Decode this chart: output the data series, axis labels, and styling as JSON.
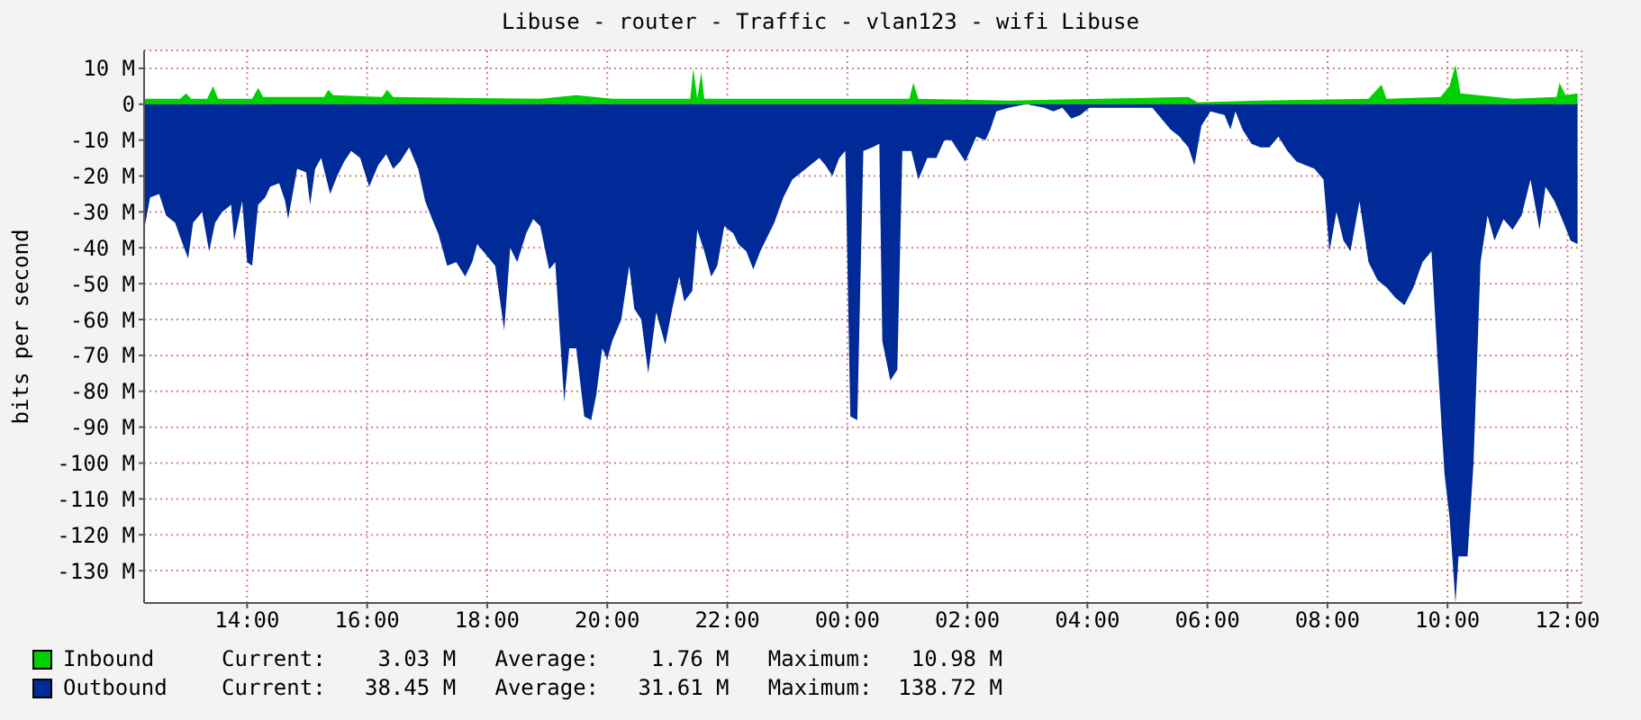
{
  "chart_data": {
    "type": "area",
    "title": "Libuse - router - Traffic - vlan123 - wifi Libuse",
    "ylabel": "bits per second",
    "xlim": [
      "--01-01T12:17",
      "--01-02T12:14"
    ],
    "ylim": [
      -139,
      15
    ],
    "xticks": [
      {
        "value": "--01-01T14:00",
        "label": "14:00"
      },
      {
        "value": "--01-01T16:00",
        "label": "16:00"
      },
      {
        "value": "--01-01T18:00",
        "label": "18:00"
      },
      {
        "value": "--01-01T20:00",
        "label": "20:00"
      },
      {
        "value": "--01-01T22:00",
        "label": "22:00"
      },
      {
        "value": "--01-02T00:00",
        "label": "00:00"
      },
      {
        "value": "--01-02T02:00",
        "label": "02:00"
      },
      {
        "value": "--01-02T04:00",
        "label": "04:00"
      },
      {
        "value": "--01-02T06:00",
        "label": "06:00"
      },
      {
        "value": "--01-02T08:00",
        "label": "08:00"
      },
      {
        "value": "--01-02T10:00",
        "label": "10:00"
      },
      {
        "value": "--01-02T12:00",
        "label": "12:00"
      }
    ],
    "yticks": [
      {
        "value": 10,
        "label": "10 M"
      },
      0,
      {
        "value": -10,
        "label": "-10 M"
      },
      {
        "value": -20,
        "label": "-20 M"
      },
      {
        "value": -30,
        "label": "-30 M"
      },
      {
        "value": -40,
        "label": "-40 M"
      },
      {
        "value": -50,
        "label": "-50 M"
      },
      {
        "value": -60,
        "label": "-60 M"
      },
      {
        "value": -70,
        "label": "-70 M"
      },
      {
        "value": -80,
        "label": "-80 M"
      },
      {
        "value": -90,
        "label": "-90 M"
      },
      {
        "value": -100,
        "label": "-100 M"
      },
      {
        "value": -110,
        "label": "-110 M"
      },
      {
        "value": -120,
        "label": "-120 M"
      },
      {
        "value": -130,
        "label": "-130 M"
      }
    ],
    "grid": true,
    "legend": "bottom",
    "annotations": [
      "Current:    3.03 M   Average:    1.76 M   Maximum:   10.98 M",
      "Current:   38.45 M   Average:   31.61 M   Maximum:  138.72 M"
    ],
    "series": [
      {
        "name": "Inbound",
        "color": "#00cf00",
        "x": [
          "--01-01T12:17",
          "--01-01T12:53",
          "--01-01T12:59",
          "--01-01T13:04",
          "--01-01T13:20",
          "--01-01T13:26",
          "--01-01T13:31",
          "--01-01T14:05",
          "--01-01T14:11",
          "--01-01T14:16",
          "--01-01T15:17",
          "--01-01T15:21",
          "--01-01T15:26",
          "--01-01T16:15",
          "--01-01T16:20",
          "--01-01T16:26",
          "--01-01T18:53",
          "--01-01T19:29",
          "--01-01T20:05",
          "--01-01T21:23",
          "--01-01T21:26",
          "--01-01T21:30",
          "--01-01T21:34",
          "--01-01T21:37",
          "--01-01T23:23",
          "--01-02T01:02",
          "--01-02T01:06",
          "--01-02T01:11",
          "--01-02T02:41",
          "--01-02T05:41",
          "--01-02T05:50",
          "--01-02T06:53",
          "--01-02T08:41",
          "--01-02T08:54",
          "--01-02T08:59",
          "--01-02T09:53",
          "--01-02T10:02",
          "--01-02T10:08",
          "--01-02T10:13",
          "--01-02T11:05",
          "--01-02T11:49",
          "--01-02T11:52",
          "--01-02T11:58",
          "--01-02T12:10"
        ],
        "values": [
          1.5,
          1.5,
          3,
          1.5,
          1.5,
          5,
          1.5,
          1.5,
          4.5,
          2,
          2,
          4,
          2.5,
          2,
          4,
          2,
          1.5,
          2.5,
          1.5,
          1.5,
          10,
          1.5,
          9,
          1.5,
          1.5,
          1.5,
          6,
          1.5,
          1,
          2,
          0.5,
          1,
          1.5,
          5.5,
          1.5,
          2,
          5,
          11,
          3,
          1.5,
          2,
          6,
          2.5,
          3
        ]
      },
      {
        "name": "Outbound",
        "color": "#002a97",
        "x": [
          "--01-01T12:17",
          "--01-01T12:23",
          "--01-01T12:32",
          "--01-01T12:39",
          "--01-01T12:48",
          "--01-01T12:53",
          "--01-01T13:01",
          "--01-01T13:06",
          "--01-01T13:15",
          "--01-01T13:22",
          "--01-01T13:28",
          "--01-01T13:35",
          "--01-01T13:44",
          "--01-01T13:47",
          "--01-01T13:55",
          "--01-01T14:00",
          "--01-01T14:05",
          "--01-01T14:11",
          "--01-01T14:18",
          "--01-01T14:23",
          "--01-01T14:32",
          "--01-01T14:38",
          "--01-01T14:41",
          "--01-01T14:50",
          "--01-01T14:59",
          "--01-01T15:03",
          "--01-01T15:08",
          "--01-01T15:14",
          "--01-01T15:23",
          "--01-01T15:30",
          "--01-01T15:37",
          "--01-01T15:44",
          "--01-01T15:53",
          "--01-01T16:02",
          "--01-01T16:11",
          "--01-01T16:19",
          "--01-01T16:26",
          "--01-01T16:33",
          "--01-01T16:42",
          "--01-01T16:51",
          "--01-01T16:58",
          "--01-01T17:05",
          "--01-01T17:11",
          "--01-01T17:20",
          "--01-01T17:29",
          "--01-01T17:38",
          "--01-01T17:45",
          "--01-01T17:50",
          "--01-01T17:59",
          "--01-01T18:08",
          "--01-01T18:17",
          "--01-01T18:23",
          "--01-01T18:30",
          "--01-01T18:39",
          "--01-01T18:46",
          "--01-01T18:53",
          "--01-01T19:02",
          "--01-01T19:08",
          "--01-01T19:17",
          "--01-01T19:22",
          "--01-01T19:29",
          "--01-01T19:37",
          "--01-01T19:44",
          "--01-01T19:49",
          "--01-01T19:55",
          "--01-01T20:00",
          "--01-01T20:05",
          "--01-01T20:14",
          "--01-01T20:22",
          "--01-01T20:27",
          "--01-01T20:34",
          "--01-01T20:41",
          "--01-01T20:49",
          "--01-01T20:58",
          "--01-01T21:05",
          "--01-01T21:12",
          "--01-01T21:17",
          "--01-01T21:25",
          "--01-01T21:30",
          "--01-01T21:37",
          "--01-01T21:44",
          "--01-01T21:50",
          "--01-01T21:57",
          "--01-01T22:06",
          "--01-01T22:11",
          "--01-01T22:19",
          "--01-01T22:26",
          "--01-01T22:33",
          "--01-01T22:40",
          "--01-01T22:47",
          "--01-01T22:56",
          "--01-01T23:05",
          "--01-01T23:14",
          "--01-01T23:23",
          "--01-01T23:32",
          "--01-01T23:38",
          "--01-01T23:45",
          "--01-01T23:52",
          "--01-01T23:58",
          "--01-02T00:03",
          "--01-02T00:10",
          "--01-02T00:16",
          "--01-02T00:25",
          "--01-02T00:32",
          "--01-02T00:35",
          "--01-02T00:43",
          "--01-02T00:50",
          "--01-02T00:55",
          "--01-02T01:04",
          "--01-02T01:11",
          "--01-02T01:20",
          "--01-02T01:29",
          "--01-02T01:37",
          "--01-02T01:44",
          "--01-02T01:51",
          "--01-02T01:58",
          "--01-02T02:09",
          "--01-02T02:18",
          "--01-02T02:23",
          "--01-02T02:29",
          "--01-02T02:41",
          "--01-02T02:59",
          "--01-02T03:17",
          "--01-02T03:26",
          "--01-02T03:35",
          "--01-02T03:44",
          "--01-02T03:53",
          "--01-02T04:02",
          "--01-02T04:29",
          "--01-02T05:05",
          "--01-02T05:23",
          "--01-02T05:32",
          "--01-02T05:41",
          "--01-02T05:47",
          "--01-02T05:54",
          "--01-02T06:03",
          "--01-02T06:17",
          "--01-02T06:23",
          "--01-02T06:28",
          "--01-02T06:35",
          "--01-02T06:44",
          "--01-02T06:53",
          "--01-02T07:02",
          "--01-02T07:11",
          "--01-02T07:20",
          "--01-02T07:29",
          "--01-02T07:38",
          "--01-02T07:47",
          "--01-02T07:56",
          "--01-02T08:02",
          "--01-02T08:09",
          "--01-02T08:16",
          "--01-02T08:23",
          "--01-02T08:32",
          "--01-02T08:41",
          "--01-02T08:50",
          "--01-02T08:59",
          "--01-02T09:08",
          "--01-02T09:17",
          "--01-02T09:26",
          "--01-02T09:35",
          "--01-02T09:44",
          "--01-02T09:50",
          "--01-02T09:57",
          "--01-02T10:02",
          "--01-02T10:08",
          "--01-02T10:11",
          "--01-02T10:20",
          "--01-02T10:26",
          "--01-02T10:33",
          "--01-02T10:40",
          "--01-02T10:47",
          "--01-02T10:56",
          "--01-02T11:05",
          "--01-02T11:14",
          "--01-02T11:23",
          "--01-02T11:32",
          "--01-02T11:38",
          "--01-02T11:47",
          "--01-02T11:56",
          "--01-02T12:03",
          "--01-02T12:10"
        ],
        "values": [
          -35,
          -26,
          -25,
          -31,
          -33,
          -37,
          -43,
          -33,
          -30,
          -41,
          -33,
          -30,
          -28,
          -38,
          -27,
          -44,
          -45,
          -28,
          -26,
          -23,
          -22,
          -27,
          -32,
          -18,
          -19,
          -28,
          -18,
          -15,
          -25,
          -20,
          -16,
          -13,
          -15,
          -23,
          -17,
          -14,
          -18,
          -16,
          -12,
          -18,
          -27,
          -32,
          -36,
          -45,
          -44,
          -48,
          -44,
          -39,
          -42,
          -45,
          -63,
          -40,
          -44,
          -36,
          -32,
          -34,
          -46,
          -44,
          -83,
          -68,
          -68,
          -87,
          -88,
          -81,
          -68,
          -71,
          -66,
          -60,
          -45,
          -57,
          -60,
          -75,
          -58,
          -67,
          -57,
          -48,
          -55,
          -52,
          -35,
          -41,
          -48,
          -45,
          -34,
          -36,
          -39,
          -41,
          -46,
          -41,
          -37,
          -33,
          -26,
          -21,
          -19,
          -17,
          -15,
          -17,
          -20,
          -15,
          -13,
          -87,
          -88,
          -13,
          -12,
          -11,
          -66,
          -77,
          -74,
          -13,
          -13,
          -21,
          -15,
          -15,
          -10,
          -10,
          -13,
          -16,
          -9,
          -10,
          -7,
          -2,
          -1,
          0,
          -1,
          -2,
          -1,
          -4,
          -3,
          -1,
          -1,
          -1,
          -7,
          -9,
          -12,
          -17,
          -6,
          -2,
          -3,
          -7,
          -2,
          -7,
          -11,
          -12,
          -12,
          -9,
          -13,
          -16,
          -17,
          -18,
          -21,
          -41,
          -30,
          -38,
          -41,
          -27,
          -44,
          -49,
          -51,
          -54,
          -56,
          -51,
          -44,
          -41,
          -71,
          -103,
          -115,
          -139,
          -126,
          -126,
          -100,
          -44,
          -31,
          -38,
          -32,
          -35,
          -31,
          -21,
          -35,
          -23,
          -27,
          -33,
          -38,
          -39
        ]
      }
    ]
  }
}
